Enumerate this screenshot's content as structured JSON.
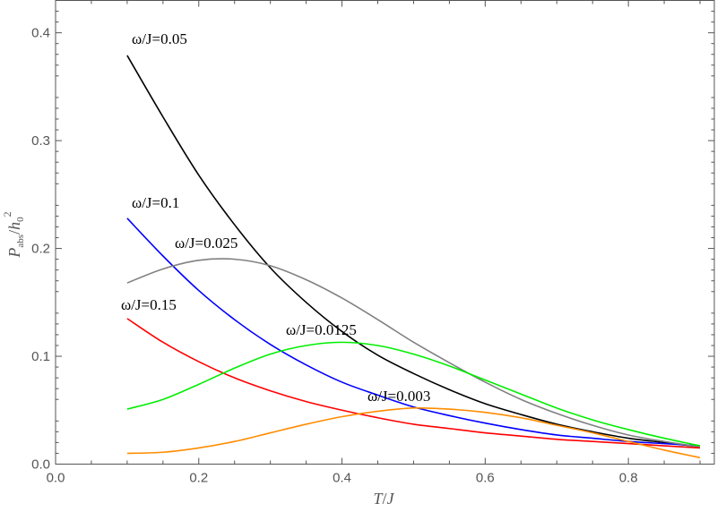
{
  "chart_data": {
    "type": "line",
    "xlabel": {
      "base": "T",
      "sep": "/",
      "den": "J"
    },
    "ylabel": {
      "base": "P",
      "sub": "abs",
      "sep": "/",
      "den": "h",
      "den_sub": "0",
      "sup": "2"
    },
    "xlim": [
      0.0,
      0.92
    ],
    "ylim": [
      0.0,
      0.43
    ],
    "xticks": [
      0.0,
      0.2,
      0.4,
      0.6,
      0.8
    ],
    "xtick_labels": [
      "0.0",
      "0.2",
      "0.4",
      "0.6",
      "0.8"
    ],
    "yticks": [
      0.0,
      0.1,
      0.2,
      0.3,
      0.4
    ],
    "ytick_labels": [
      "0.0",
      "0.1",
      "0.2",
      "0.3",
      "0.4"
    ],
    "grid": false,
    "legend": "inline labels",
    "series": [
      {
        "name": "ω/J=0.05",
        "label_text": "ω/J=0.05",
        "color": "#000000",
        "x": [
          0.1,
          0.15,
          0.2,
          0.25,
          0.3,
          0.35,
          0.4,
          0.45,
          0.5,
          0.55,
          0.6,
          0.65,
          0.7,
          0.75,
          0.8,
          0.85,
          0.9
        ],
        "y": [
          0.379,
          0.322,
          0.268,
          0.222,
          0.182,
          0.15,
          0.123,
          0.101,
          0.084,
          0.069,
          0.056,
          0.046,
          0.037,
          0.03,
          0.024,
          0.02,
          0.016
        ]
      },
      {
        "name": "ω/J=0.1",
        "label_text": "ω/J=0.1",
        "color": "#0000ff",
        "x": [
          0.1,
          0.15,
          0.2,
          0.25,
          0.3,
          0.35,
          0.4,
          0.45,
          0.5,
          0.55,
          0.6,
          0.65,
          0.7,
          0.75,
          0.8,
          0.85,
          0.9
        ],
        "y": [
          0.228,
          0.193,
          0.161,
          0.134,
          0.111,
          0.092,
          0.076,
          0.064,
          0.053,
          0.045,
          0.038,
          0.032,
          0.027,
          0.024,
          0.021,
          0.019,
          0.017
        ]
      },
      {
        "name": "ω/J=0.025",
        "label_text": "ω/J=0.025",
        "color": "#808080",
        "x": [
          0.1,
          0.15,
          0.2,
          0.25,
          0.3,
          0.35,
          0.4,
          0.45,
          0.5,
          0.55,
          0.6,
          0.65,
          0.7,
          0.75,
          0.8,
          0.85,
          0.9
        ],
        "y": [
          0.168,
          0.181,
          0.189,
          0.19,
          0.184,
          0.171,
          0.154,
          0.134,
          0.113,
          0.094,
          0.076,
          0.06,
          0.047,
          0.036,
          0.027,
          0.021,
          0.016
        ]
      },
      {
        "name": "ω/J=0.15",
        "label_text": "ω/J=0.15",
        "color": "#ff0000",
        "x": [
          0.1,
          0.15,
          0.2,
          0.25,
          0.3,
          0.35,
          0.4,
          0.45,
          0.5,
          0.55,
          0.6,
          0.65,
          0.7,
          0.75,
          0.8,
          0.85,
          0.9
        ],
        "y": [
          0.135,
          0.113,
          0.095,
          0.08,
          0.068,
          0.058,
          0.05,
          0.043,
          0.037,
          0.033,
          0.029,
          0.026,
          0.023,
          0.021,
          0.019,
          0.017,
          0.015
        ]
      },
      {
        "name": "ω/J=0.0125",
        "label_text": "ω/J=0.0125",
        "color": "#00ee00",
        "x": [
          0.1,
          0.15,
          0.2,
          0.25,
          0.3,
          0.35,
          0.4,
          0.45,
          0.5,
          0.55,
          0.6,
          0.65,
          0.7,
          0.75,
          0.8,
          0.85,
          0.9
        ],
        "y": [
          0.051,
          0.06,
          0.074,
          0.089,
          0.102,
          0.11,
          0.113,
          0.11,
          0.102,
          0.091,
          0.078,
          0.065,
          0.052,
          0.041,
          0.032,
          0.024,
          0.017
        ]
      },
      {
        "name": "ω/J=0.003",
        "label_text": "ω/J=0.003",
        "color": "#ff8c00",
        "x": [
          0.1,
          0.15,
          0.2,
          0.25,
          0.3,
          0.35,
          0.4,
          0.45,
          0.5,
          0.55,
          0.6,
          0.65,
          0.7,
          0.75,
          0.8,
          0.85,
          0.9
        ],
        "y": [
          0.01,
          0.011,
          0.015,
          0.021,
          0.029,
          0.037,
          0.044,
          0.049,
          0.052,
          0.051,
          0.048,
          0.043,
          0.036,
          0.029,
          0.021,
          0.013,
          0.006
        ]
      }
    ]
  }
}
